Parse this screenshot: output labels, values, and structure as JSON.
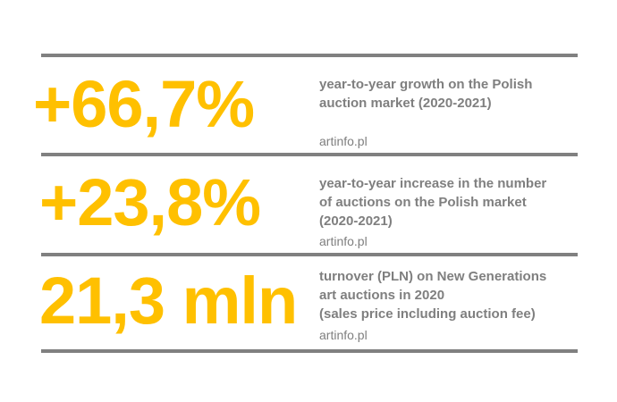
{
  "accent_color": "#FFC000",
  "rule_color": "#808080",
  "stats": [
    {
      "value": "+66,7%",
      "lines": [
        "year-to-year growth on the Polish",
        "auction market (2020-2021)"
      ],
      "source": "artinfo.pl"
    },
    {
      "value": "+23,8%",
      "lines": [
        "year-to-year increase in the number",
        "of auctions on the Polish market",
        "(2020-2021)"
      ],
      "source": "artinfo.pl"
    },
    {
      "value": "21,3 mln",
      "lines": [
        "turnover (PLN) on New Generations",
        "art auctions in 2020",
        "(sales price including auction fee)"
      ],
      "source": "artinfo.pl"
    }
  ]
}
